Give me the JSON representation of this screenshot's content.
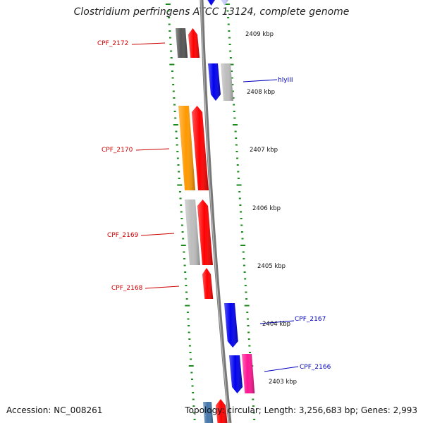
{
  "title": "Clostridium perfringens ATCC 13124, complete genome",
  "footer": {
    "accession": "Accession: NC_008261",
    "topology": "Topology: circular; Length: 3,256,683 bp; Genes: 2,993"
  },
  "colors": {
    "backbone": "#777777",
    "tick": "#1a8a1a",
    "forward_label": "#cc0000",
    "reverse_label": "#0000bb",
    "red": "#ff0000",
    "blue": "#0000ee",
    "gray": "#bdbdbd",
    "darkgray": "#555555",
    "orange": "#ff9900",
    "pink": "#ff1493",
    "lavender": "#ccccff",
    "steelblue": "#4477aa"
  },
  "kbp_labels": [
    "2409 kbp",
    "2408 kbp",
    "2407 kbp",
    "2406 kbp",
    "2405 kbp",
    "2404 kbp",
    "2403 kbp"
  ],
  "gene_labels": {
    "left": [
      "CPF_2172",
      "CPF_2170",
      "CPF_2169",
      "CPF_2168"
    ],
    "right": [
      "hlyIII",
      "CPF_2167",
      "CPF_2166"
    ]
  }
}
